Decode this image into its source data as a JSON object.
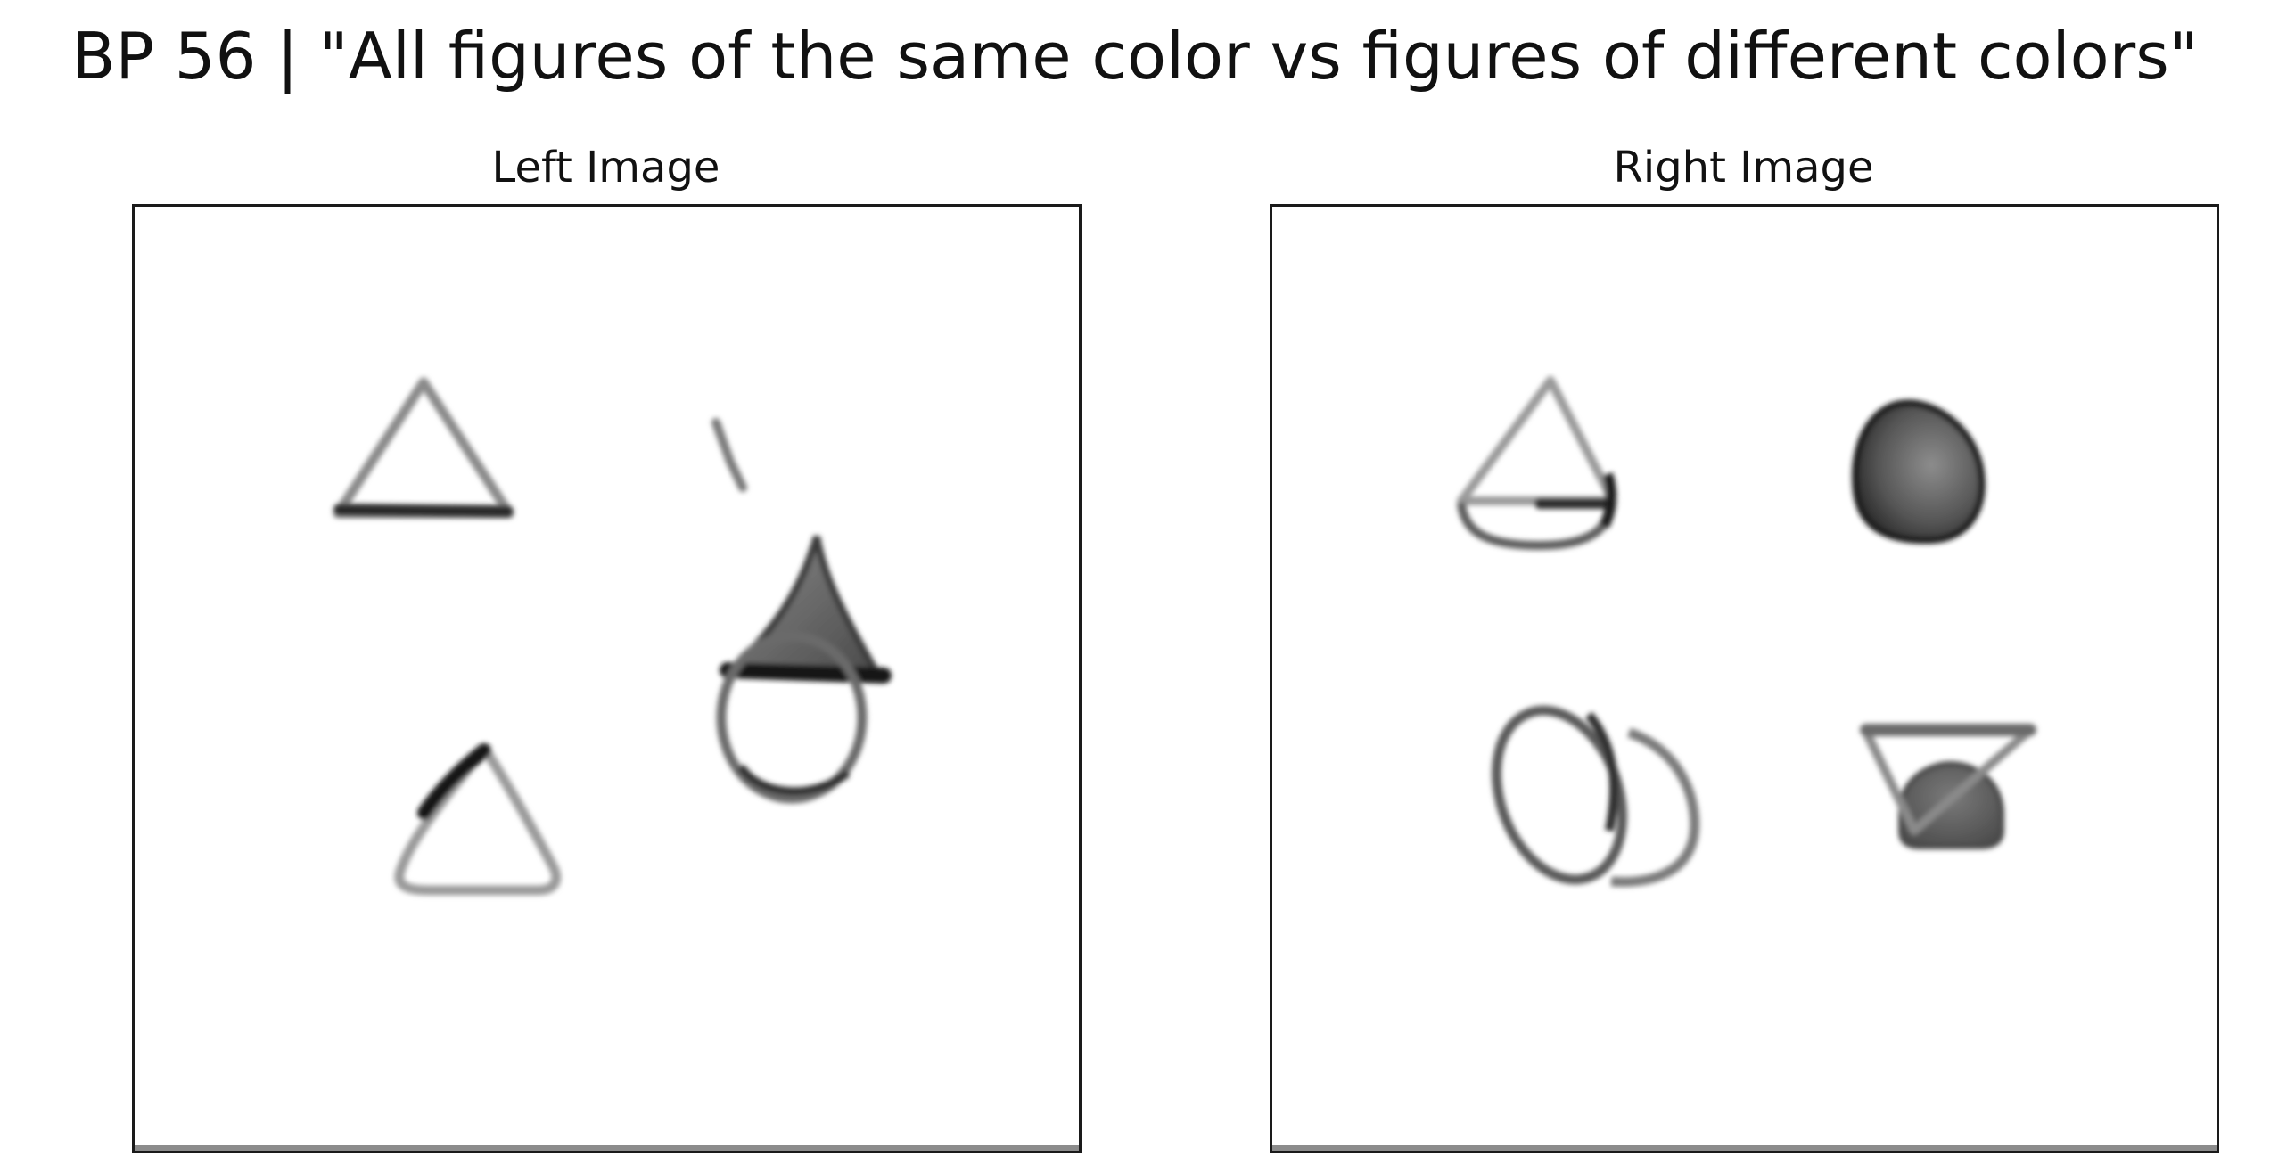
{
  "figure": {
    "title": "BP 56 | \"All figures of the same color vs figures of different colors\""
  },
  "panels": {
    "left": {
      "title": "Left Image",
      "figures": [
        "triangle-outline",
        "small-stroke",
        "triangle-on-circle",
        "rounded-triangle"
      ]
    },
    "right": {
      "title": "Right Image",
      "figures": [
        "triangle-over-semicircle",
        "filled-blob",
        "overlapping-ellipses",
        "inverted-triangle-with-semicircle"
      ]
    }
  },
  "colors": {
    "ink_dark": "#1c1c1c",
    "ink_mid": "#5a5a5a",
    "ink_light": "#9a9a9a",
    "frame": "#1a1a1a"
  }
}
